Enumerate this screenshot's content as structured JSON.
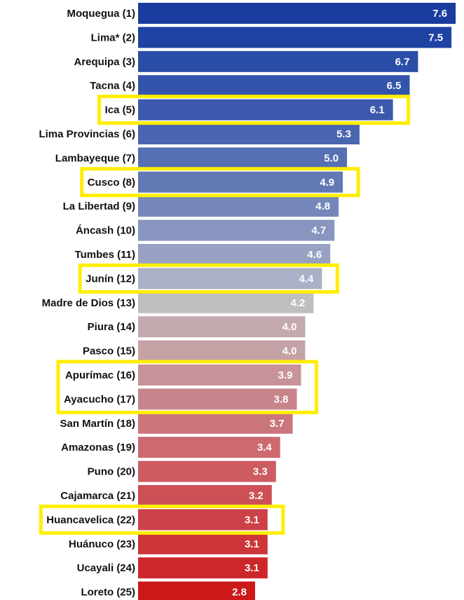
{
  "chart_data": {
    "type": "bar",
    "orientation": "horizontal",
    "categories": [
      "Moquegua (1)",
      "Lima* (2)",
      "Arequipa (3)",
      "Tacna (4)",
      "Ica (5)",
      "Lima Provincias (6)",
      "Lambayeque (7)",
      "Cusco (8)",
      "La Libertad (9)",
      "Áncash (10)",
      "Tumbes (11)",
      "Junín (12)",
      "Madre de Dios (13)",
      "Piura (14)",
      "Pasco (15)",
      "Apurímac (16)",
      "Ayacucho (17)",
      "San Martín (18)",
      "Amazonas (19)",
      "Puno (20)",
      "Cajamarca (21)",
      "Huancavelica (22)",
      "Huánuco (23)",
      "Ucayali (24)",
      "Loreto (25)"
    ],
    "values": [
      7.6,
      7.5,
      6.7,
      6.5,
      6.1,
      5.3,
      5.0,
      4.9,
      4.8,
      4.7,
      4.6,
      4.4,
      4.2,
      4.0,
      4.0,
      3.9,
      3.8,
      3.7,
      3.4,
      3.3,
      3.2,
      3.1,
      3.1,
      3.1,
      2.8
    ],
    "value_labels": [
      "7.6",
      "7.5",
      "6.7",
      "6.5",
      "6.1",
      "5.3",
      "5.0",
      "4.9",
      "4.8",
      "4.7",
      "4.6",
      "4.4",
      "4.2",
      "4.0",
      "4.0",
      "3.9",
      "3.8",
      "3.7",
      "3.4",
      "3.3",
      "3.2",
      "3.1",
      "3.1",
      "3.1",
      "2.8"
    ],
    "colors": [
      "#1a3c9e",
      "#1f43a3",
      "#2a4ea8",
      "#3454ab",
      "#3c5aad",
      "#4a66b0",
      "#5670b3",
      "#6279b5",
      "#7587ba",
      "#8795bf",
      "#97a2c3",
      "#aab1c6",
      "#bfbfc0",
      "#c4aaae",
      "#c4a2a6",
      "#c8929a",
      "#c8848b",
      "#cb767d",
      "#cc6a70",
      "#cd5c62",
      "#cd5056",
      "#cc4147",
      "#cc363b",
      "#cc282c",
      "#cc1818"
    ],
    "xlim": [
      0,
      7.8
    ],
    "highlight_color": "#ffee00",
    "highlight_groups": [
      [
        4,
        4
      ],
      [
        7,
        7
      ],
      [
        11,
        11
      ],
      [
        15,
        16
      ],
      [
        21,
        21
      ]
    ]
  }
}
